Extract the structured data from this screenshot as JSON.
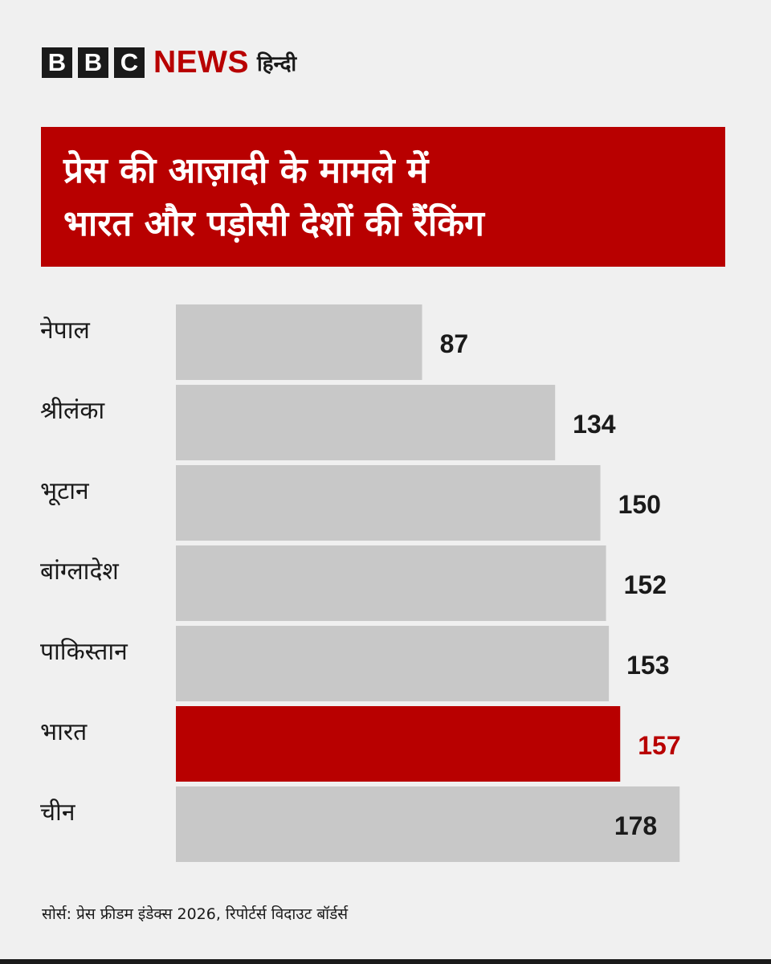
{
  "brand": {
    "letters": [
      "B",
      "B",
      "C"
    ],
    "news": "NEWS",
    "language": "हिन्दी"
  },
  "headline": {
    "line1": "प्रेस की आज़ादी के मामले में",
    "line2": "भारत और पड़ोसी देशों की रैंकिंग"
  },
  "colors": {
    "accent": "#b80000",
    "bar": "#c8c8c8",
    "text": "#1a1a1a",
    "background": "#f0f0f0"
  },
  "chart_data": {
    "type": "bar",
    "orientation": "horizontal",
    "categories": [
      "नेपाल",
      "श्रीलंका",
      "भूटान",
      "बांग्लादेश",
      "पाकिस्तान",
      "भारत",
      "चीन"
    ],
    "values": [
      87,
      134,
      150,
      152,
      153,
      157,
      178
    ],
    "highlight": "भारत",
    "xlim": [
      0,
      180
    ],
    "grid": false
  },
  "footer": {
    "source": "सोर्स: प्रेस फ्रीडम इंडेक्स 2026, रिपोर्टर्स विदाउट बॉर्डर्स"
  }
}
